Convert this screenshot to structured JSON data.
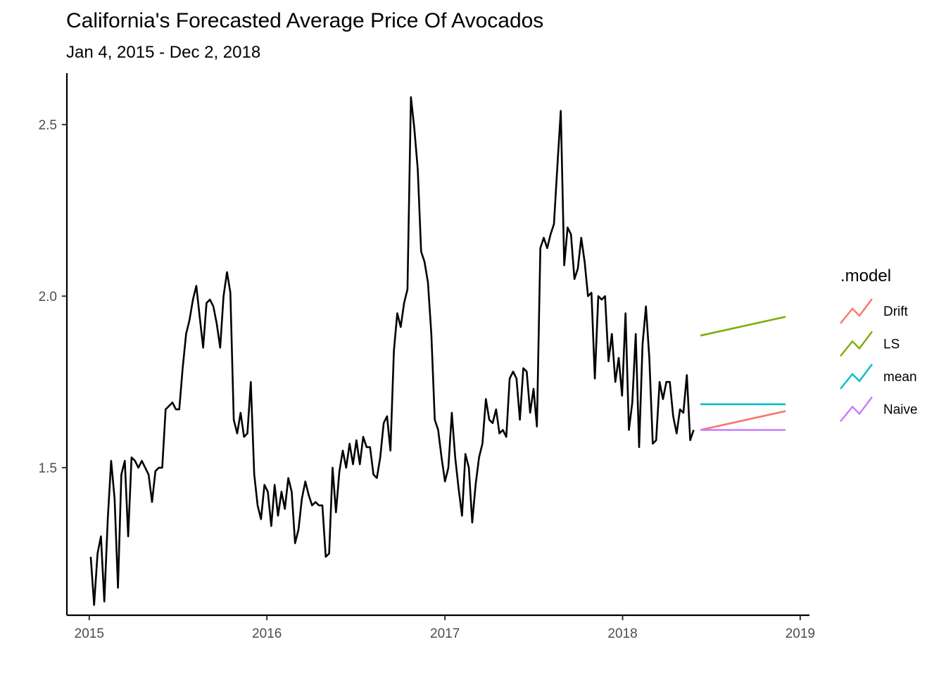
{
  "chart_data": {
    "type": "line",
    "title": "California's Forecasted Average Price Of Avocados",
    "subtitle": "Jan 4, 2015 - Dec 2, 2018",
    "xlabel": "",
    "ylabel": "",
    "x_ticks": [
      "2015",
      "2016",
      "2017",
      "2018",
      "2019"
    ],
    "y_ticks": [
      "1.5",
      "2.0",
      "2.5"
    ],
    "xlim": [
      "2014-11-16",
      "2019-01-20"
    ],
    "ylim": [
      1.07,
      2.65
    ],
    "grid": false,
    "legend": {
      "title": ".model",
      "position": "right",
      "entries": [
        {
          "label": "Drift",
          "color": "#F8766D"
        },
        {
          "label": "LS",
          "color": "#7CAE00"
        },
        {
          "label": "mean",
          "color": "#00BFC4"
        },
        {
          "label": "Naive",
          "color": "#C77CFF"
        }
      ]
    },
    "history": {
      "color": "#000000",
      "start": "2015-01-04",
      "end": "2018-06-03",
      "frequency": "weekly",
      "values": [
        1.24,
        1.1,
        1.25,
        1.3,
        1.11,
        1.35,
        1.52,
        1.41,
        1.15,
        1.48,
        1.52,
        1.3,
        1.53,
        1.52,
        1.5,
        1.52,
        1.5,
        1.48,
        1.4,
        1.49,
        1.5,
        1.5,
        1.67,
        1.68,
        1.69,
        1.67,
        1.67,
        1.79,
        1.89,
        1.93,
        1.99,
        2.03,
        1.94,
        1.85,
        1.98,
        1.99,
        1.97,
        1.92,
        1.85,
        2.0,
        2.07,
        2.01,
        1.64,
        1.6,
        1.66,
        1.59,
        1.6,
        1.75,
        1.48,
        1.39,
        1.35,
        1.45,
        1.43,
        1.33,
        1.45,
        1.36,
        1.43,
        1.38,
        1.47,
        1.43,
        1.28,
        1.32,
        1.41,
        1.46,
        1.42,
        1.39,
        1.4,
        1.39,
        1.39,
        1.24,
        1.25,
        1.5,
        1.37,
        1.49,
        1.55,
        1.5,
        1.57,
        1.51,
        1.58,
        1.51,
        1.59,
        1.56,
        1.56,
        1.48,
        1.47,
        1.53,
        1.63,
        1.65,
        1.55,
        1.84,
        1.95,
        1.91,
        1.98,
        2.02,
        2.58,
        2.49,
        2.37,
        2.13,
        2.1,
        2.04,
        1.89,
        1.64,
        1.61,
        1.53,
        1.46,
        1.5,
        1.66,
        1.53,
        1.44,
        1.36,
        1.54,
        1.5,
        1.34,
        1.45,
        1.53,
        1.57,
        1.7,
        1.64,
        1.63,
        1.67,
        1.6,
        1.61,
        1.59,
        1.76,
        1.78,
        1.76,
        1.64,
        1.79,
        1.78,
        1.66,
        1.73,
        1.62,
        2.14,
        2.17,
        2.14,
        2.18,
        2.21,
        2.38,
        2.54,
        2.09,
        2.2,
        2.18,
        2.05,
        2.08,
        2.17,
        2.1,
        2.0,
        2.01,
        1.76,
        2.0,
        1.99,
        2.0,
        1.81,
        1.89,
        1.75,
        1.82,
        1.71,
        1.95,
        1.61,
        1.69,
        1.89,
        1.56,
        1.86,
        1.97,
        1.82,
        1.57,
        1.58,
        1.75,
        1.7,
        1.75,
        1.75,
        1.65,
        1.6,
        1.67,
        1.66,
        1.77,
        1.58,
        1.61
      ]
    },
    "forecasts": [
      {
        "name": "Drift",
        "color": "#F8766D",
        "x": [
          "2018-06-10",
          "2018-12-02"
        ],
        "y": [
          1.61,
          1.665
        ]
      },
      {
        "name": "LS",
        "color": "#7CAE00",
        "x": [
          "2018-06-10",
          "2018-12-02"
        ],
        "y": [
          1.885,
          1.94
        ]
      },
      {
        "name": "mean",
        "color": "#00BFC4",
        "x": [
          "2018-06-10",
          "2018-12-02"
        ],
        "y": [
          1.685,
          1.685
        ]
      },
      {
        "name": "Naive",
        "color": "#C77CFF",
        "x": [
          "2018-06-10",
          "2018-12-02"
        ],
        "y": [
          1.61,
          1.61
        ]
      }
    ]
  }
}
